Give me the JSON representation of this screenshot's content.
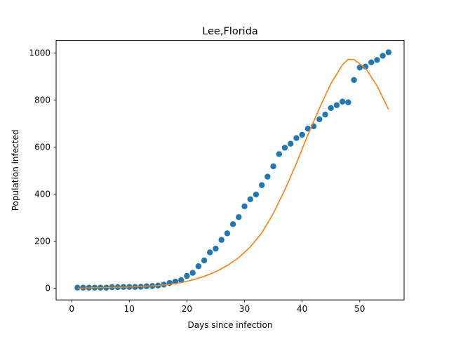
{
  "chart_data": {
    "type": "scatter",
    "title": "Lee,Florida",
    "xlabel": "Days since infection",
    "ylabel": "Population infected",
    "xlim": [
      -2.7,
      57.7
    ],
    "ylim": [
      -50.15,
      1053.15
    ],
    "xticks": [
      0,
      10,
      20,
      30,
      40,
      50
    ],
    "yticks": [
      0,
      200,
      400,
      600,
      800,
      1000
    ],
    "grid": false,
    "colors": {
      "observed": "#1f77b4",
      "fit": "#ff7f0e"
    },
    "series": [
      {
        "type": "scatter",
        "x": [
          1,
          2,
          3,
          4,
          5,
          6,
          7,
          8,
          9,
          10,
          11,
          12,
          13,
          14,
          15,
          16,
          17,
          18,
          19,
          20,
          21,
          22,
          23,
          24,
          25,
          26,
          27,
          28,
          29,
          30,
          31,
          32,
          33,
          34,
          35,
          36,
          37,
          38,
          39,
          40,
          41,
          42,
          43,
          44,
          45,
          46,
          47,
          48,
          49,
          50,
          51,
          52,
          53,
          54,
          55
        ],
        "y": [
          2,
          2,
          2,
          2,
          2,
          2,
          4,
          4,
          5,
          5,
          5,
          6,
          8,
          9,
          11,
          15,
          22,
          28,
          34,
          52,
          65,
          93,
          118,
          152,
          168,
          205,
          233,
          272,
          302,
          348,
          378,
          398,
          438,
          474,
          518,
          570,
          597,
          614,
          638,
          652,
          678,
          688,
          718,
          738,
          766,
          778,
          793,
          790,
          885,
          938,
          942,
          960,
          970,
          988,
          1003
        ]
      },
      {
        "type": "line",
        "x": [
          1,
          3,
          5,
          7,
          9,
          11,
          13,
          15,
          17,
          19,
          21,
          23,
          25,
          27,
          29,
          31,
          33,
          35,
          37,
          39,
          41,
          43,
          45,
          47,
          48,
          49,
          51,
          53,
          55
        ],
        "y": [
          0,
          1,
          2,
          3,
          4,
          6,
          8,
          11,
          16,
          24,
          35,
          50,
          70,
          96,
          130,
          175,
          235,
          318,
          418,
          530,
          652,
          765,
          870,
          950,
          973,
          972,
          935,
          860,
          760
        ]
      }
    ]
  }
}
